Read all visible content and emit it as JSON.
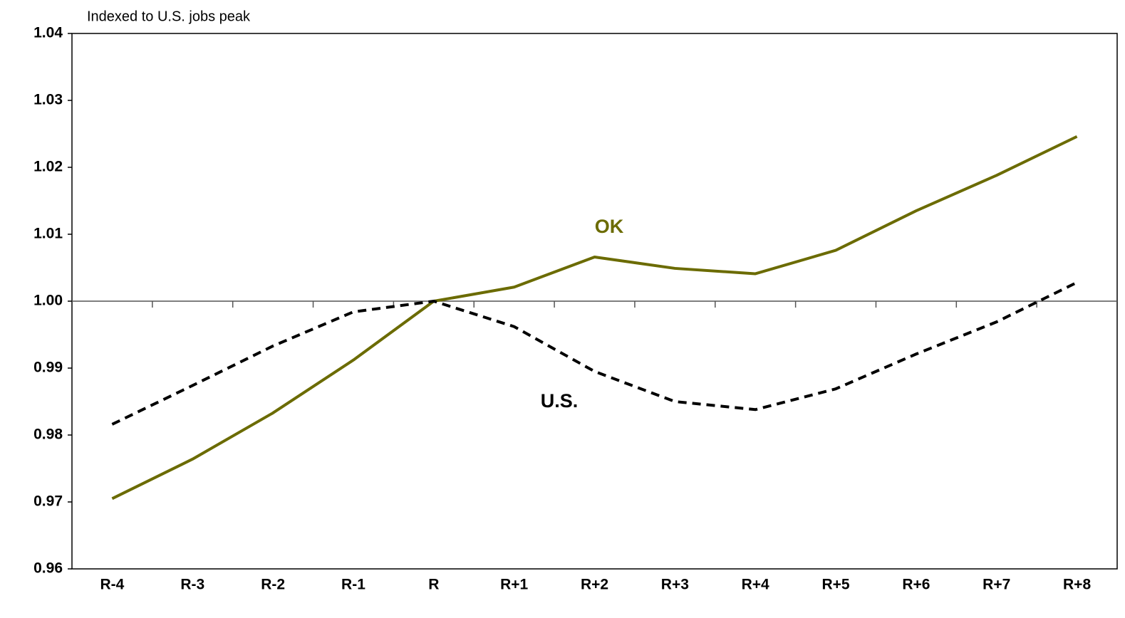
{
  "chart_data": {
    "type": "line",
    "title": "Indexed to U.S. jobs peak",
    "categories": [
      "R-4",
      "R-3",
      "R-2",
      "R-1",
      "R",
      "R+1",
      "R+2",
      "R+3",
      "R+4",
      "R+5",
      "R+6",
      "R+7",
      "R+8"
    ],
    "series": [
      {
        "name": "OK",
        "color": "#6b6b00",
        "dashed": false,
        "values": [
          0.9705,
          0.9764,
          0.9833,
          0.9912,
          1.0,
          1.0021,
          1.0066,
          1.0049,
          1.0041,
          1.0076,
          1.0135,
          1.0188,
          1.0246
        ]
      },
      {
        "name": "U.S.",
        "color": "#000000",
        "dashed": true,
        "values": [
          0.9816,
          0.9874,
          0.9933,
          0.9984,
          1.0,
          0.9962,
          0.9895,
          0.985,
          0.9838,
          0.9869,
          0.9921,
          0.9969,
          1.0028
        ]
      }
    ],
    "ylim": [
      0.96,
      1.04
    ],
    "yticks": [
      0.96,
      0.97,
      0.98,
      0.99,
      {
        "value": 1,
        "label": "1.00"
      },
      1.01,
      1.02,
      1.03,
      1.04
    ],
    "grid": false
  }
}
